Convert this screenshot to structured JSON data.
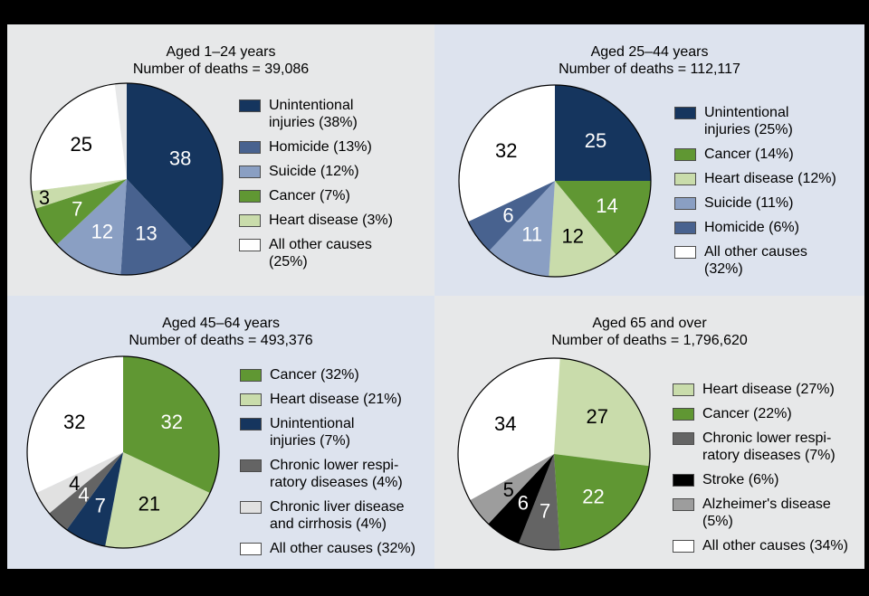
{
  "figure": {
    "frame_color": "#000000",
    "panel_bg_gray": "#e7e8e9",
    "panel_bg_blue": "#dde3ee"
  },
  "chart_data": [
    {
      "type": "pie",
      "title": "Aged 1–24 years",
      "subtitle": "Number of deaths = 39,086",
      "bg": "#e7e8e9",
      "legend_position": "right",
      "start_angle": "12 o'clock, clockwise",
      "slices": [
        {
          "label": "Unintentional injuries",
          "pct": 38,
          "value_label": "38",
          "color": "#15355e",
          "value_color": "#ffffff",
          "legend_label": "Unintentional\ninjuries (38%)"
        },
        {
          "label": "Homicide",
          "pct": 13,
          "value_label": "13",
          "color": "#48628f",
          "value_color": "#ffffff",
          "legend_label": "Homicide (13%)"
        },
        {
          "label": "Suicide",
          "pct": 12,
          "value_label": "12",
          "color": "#8a9fc3",
          "value_color": "#ffffff",
          "legend_label": "Suicide (12%)"
        },
        {
          "label": "Cancer",
          "pct": 7,
          "value_label": "7",
          "color": "#609733",
          "value_color": "#ffffff",
          "legend_label": "Cancer (7%)"
        },
        {
          "label": "Heart disease",
          "pct": 3,
          "value_label": "3",
          "color": "#c9dcab",
          "value_color": "#000000",
          "legend_label": "Heart disease (3%)"
        },
        {
          "label": "All other causes",
          "pct": 25,
          "value_label": "25",
          "color": "#ffffff",
          "value_color": "#000000",
          "legend_label": "All other causes\n(25%)"
        }
      ]
    },
    {
      "type": "pie",
      "title": "Aged 25–44 years",
      "subtitle": "Number of deaths = 112,117",
      "bg": "#dde3ee",
      "legend_position": "right",
      "start_angle": "12 o'clock, clockwise",
      "slices": [
        {
          "label": "Unintentional injuries",
          "pct": 25,
          "value_label": "25",
          "color": "#15355e",
          "value_color": "#ffffff",
          "legend_label": "Unintentional\ninjuries (25%)"
        },
        {
          "label": "Cancer",
          "pct": 14,
          "value_label": "14",
          "color": "#609733",
          "value_color": "#ffffff",
          "legend_label": "Cancer (14%)"
        },
        {
          "label": "Heart disease",
          "pct": 12,
          "value_label": "12",
          "color": "#c9dcab",
          "value_color": "#000000",
          "legend_label": "Heart disease (12%)"
        },
        {
          "label": "Suicide",
          "pct": 11,
          "value_label": "11",
          "color": "#8a9fc3",
          "value_color": "#ffffff",
          "legend_label": "Suicide (11%)"
        },
        {
          "label": "Homicide",
          "pct": 6,
          "value_label": "6",
          "color": "#48628f",
          "value_color": "#ffffff",
          "legend_label": "Homicide (6%)"
        },
        {
          "label": "All other causes",
          "pct": 32,
          "value_label": "32",
          "color": "#ffffff",
          "value_color": "#000000",
          "legend_label": "All other causes\n(32%)"
        }
      ]
    },
    {
      "type": "pie",
      "title": "Aged 45–64 years",
      "subtitle": "Number of deaths = 493,376",
      "bg": "#dde3ee",
      "legend_position": "right",
      "start_angle": "12 o'clock, clockwise",
      "slices": [
        {
          "label": "Cancer",
          "pct": 32,
          "value_label": "32",
          "color": "#609733",
          "value_color": "#ffffff",
          "legend_label": "Cancer (32%)"
        },
        {
          "label": "Heart disease",
          "pct": 21,
          "value_label": "21",
          "color": "#c9dcab",
          "value_color": "#000000",
          "legend_label": "Heart disease (21%)"
        },
        {
          "label": "Unintentional injuries",
          "pct": 7,
          "value_label": "7",
          "color": "#15355e",
          "value_color": "#ffffff",
          "legend_label": "Unintentional\ninjuries (7%)"
        },
        {
          "label": "Chronic lower respiratory diseases",
          "pct": 4,
          "value_label": "4",
          "color": "#646464",
          "value_color": "#ffffff",
          "legend_label": "Chronic lower respi-\nratory diseases (4%)"
        },
        {
          "label": "Chronic liver disease and cirrhosis",
          "pct": 4,
          "value_label": "4",
          "color": "#e1e1e1",
          "value_color": "#000000",
          "legend_label": "Chronic liver disease\nand cirrhosis (4%)"
        },
        {
          "label": "All other causes",
          "pct": 32,
          "value_label": "32",
          "color": "#ffffff",
          "value_color": "#000000",
          "legend_label": "All other causes (32%)"
        }
      ]
    },
    {
      "type": "pie",
      "title": "Aged 65 and over",
      "subtitle": "Number of deaths = 1,796,620",
      "bg": "#e7e8e9",
      "legend_position": "right",
      "start_angle": "12 o'clock, clockwise",
      "slices": [
        {
          "label": "Heart disease",
          "pct": 27,
          "value_label": "27",
          "color": "#c9dcab",
          "value_color": "#000000",
          "legend_label": "Heart disease (27%)"
        },
        {
          "label": "Cancer",
          "pct": 22,
          "value_label": "22",
          "color": "#609733",
          "value_color": "#ffffff",
          "legend_label": "Cancer (22%)"
        },
        {
          "label": "Chronic lower respiratory diseases",
          "pct": 7,
          "value_label": "7",
          "color": "#646464",
          "value_color": "#ffffff",
          "legend_label": "Chronic lower respi-\nratory diseases (7%)"
        },
        {
          "label": "Stroke",
          "pct": 6,
          "value_label": "6",
          "color": "#000000",
          "value_color": "#ffffff",
          "legend_label": "Stroke (6%)"
        },
        {
          "label": "Alzheimer's disease",
          "pct": 5,
          "value_label": "5",
          "color": "#9d9d9d",
          "value_color": "#000000",
          "legend_label": "Alzheimer's disease\n(5%)"
        },
        {
          "label": "All other causes",
          "pct": 34,
          "value_label": "34",
          "color": "#ffffff",
          "value_color": "#000000",
          "legend_label": "All other causes (34%)"
        }
      ]
    }
  ]
}
